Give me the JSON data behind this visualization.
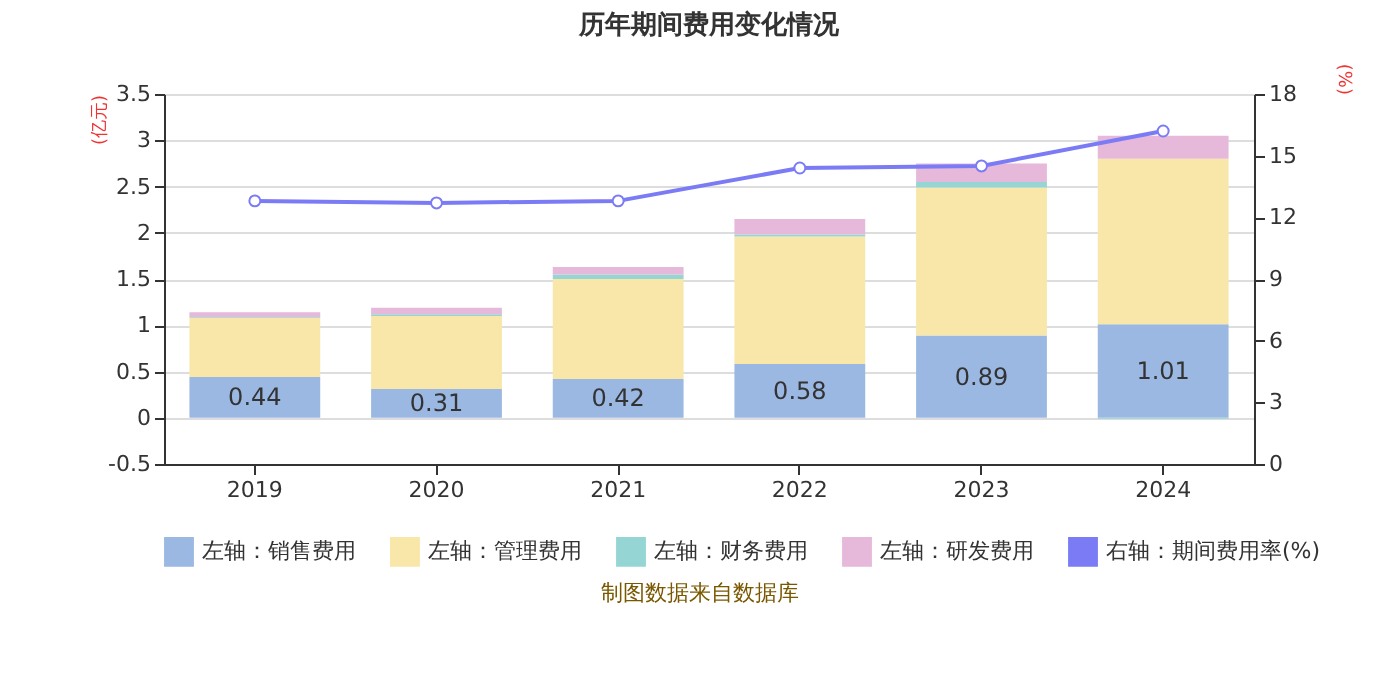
{
  "chart_data": {
    "type": "bar",
    "title": "历年期间费用变化情况",
    "ylabel": "(亿元)",
    "y2label": "(%)",
    "categories": [
      "2019",
      "2020",
      "2021",
      "2022",
      "2023",
      "2024"
    ],
    "stacked": true,
    "series": [
      {
        "name": "左轴：销售费用",
        "color": "#9bb8e3",
        "values": [
          0.44,
          0.31,
          0.42,
          0.58,
          0.89,
          1.01
        ],
        "value_labels": [
          "0.44",
          "0.31",
          "0.42",
          "0.58",
          "0.89",
          "1.01"
        ]
      },
      {
        "name": "左轴：管理费用",
        "color": "#f8e7a8",
        "values": [
          0.64,
          0.79,
          1.08,
          1.38,
          1.6,
          1.79
        ]
      },
      {
        "name": "左轴：财务费用",
        "color": "#95d5d3",
        "values": [
          0.01,
          0.02,
          0.05,
          0.02,
          0.06,
          -0.01
        ]
      },
      {
        "name": "左轴：研发费用",
        "color": "#e6b8da",
        "values": [
          0.05,
          0.07,
          0.08,
          0.17,
          0.2,
          0.25
        ]
      },
      {
        "name": "右轴：期间费用率(%)",
        "color": "#7b7bf5",
        "type": "line",
        "axis": "y2",
        "values": [
          12.8,
          12.7,
          12.8,
          14.4,
          14.5,
          16.2
        ]
      }
    ],
    "ylim": [
      -0.5,
      3.5
    ],
    "yticks": [
      -0.5,
      0,
      0.5,
      1,
      1.5,
      2,
      2.5,
      3,
      3.5
    ],
    "y2lim": [
      0,
      18
    ],
    "y2ticks": [
      0,
      3,
      6,
      9,
      12,
      15,
      18
    ],
    "grid": "y",
    "legend": "bottom",
    "marker": "circle",
    "annotations": [
      "制图数据来自数据库"
    ]
  }
}
